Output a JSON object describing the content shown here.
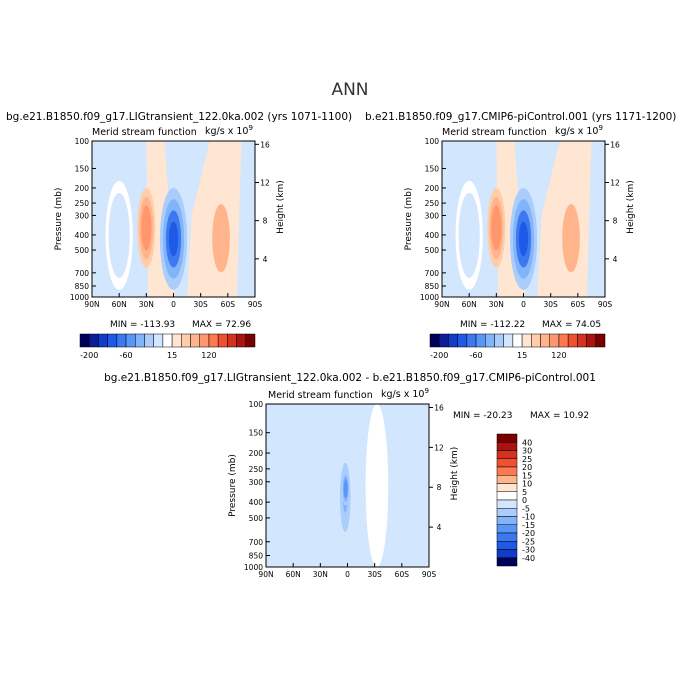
{
  "main_title": "ANN",
  "panels": [
    {
      "case_title": "bg.e21.B1850.f09_g17.LIGtransient_122.0ka.002 (yrs 1071-1100)",
      "left_title": "Merid stream function",
      "units": "kg/s x 10",
      "units_exp": "9",
      "min_text": "MIN = -113.93",
      "max_text": "MAX = 72.96"
    },
    {
      "case_title": "b.e21.B1850.f09_g17.CMIP6-piControl.001 (yrs 1171-1200)",
      "left_title": "Merid stream function",
      "units": "kg/s x 10",
      "units_exp": "9",
      "min_text": "MIN = -112.22",
      "max_text": "MAX = 74.05"
    },
    {
      "case_title": "bg.e21.B1850.f09_g17.LIGtransient_122.0ka.002 - b.e21.B1850.f09_g17.CMIP6-piControl.001",
      "left_title": "Merid stream function",
      "units": "kg/s x 10",
      "units_exp": "9",
      "min_text": "MIN = -20.23",
      "max_text": "MAX = 10.92"
    }
  ],
  "chart_data": [
    {
      "type": "heatmap",
      "title": "Merid stream function",
      "xlabel": "",
      "ylabel": "Pressure (mb)",
      "y2label": "Height (km)",
      "x_ticks": [
        "90N",
        "60N",
        "30N",
        "0",
        "30S",
        "60S",
        "90S"
      ],
      "x_range": [
        90,
        -90
      ],
      "y_ticks": [
        100,
        150,
        200,
        250,
        300,
        400,
        500,
        700,
        850,
        1000
      ],
      "y_range": [
        100,
        1000
      ],
      "y_scale": "log",
      "y2_ticks": [
        4,
        8,
        12,
        16
      ],
      "min": -113.93,
      "max": 72.96,
      "colorbar": {
        "orientation": "horizontal",
        "labels": [
          "-200",
          "-60",
          "15",
          "120"
        ],
        "colors": [
          "#00005a",
          "#0a1e96",
          "#0f3cc8",
          "#1e5ae6",
          "#3c78f0",
          "#5a96f5",
          "#82b4fa",
          "#aacdfc",
          "#d2e6fe",
          "#ffffff",
          "#ffe6d2",
          "#ffcdaa",
          "#ffb48c",
          "#ff966e",
          "#ff7850",
          "#f05032",
          "#d2321e",
          "#aa1410",
          "#780000"
        ]
      },
      "cells": [
        {
          "lat_from": 40,
          "lat_to": 20,
          "p_top": 200,
          "p_bottom": 650,
          "value": 60
        },
        {
          "lat_from": 15,
          "lat_to": -15,
          "p_top": 200,
          "p_bottom": 900,
          "value": -110
        },
        {
          "lat_from": -40,
          "lat_to": -65,
          "p_top": 220,
          "p_bottom": 800,
          "value": 40
        },
        {
          "lat_from": 75,
          "lat_to": 45,
          "p_top": 180,
          "p_bottom": 900,
          "value": -15
        }
      ]
    },
    {
      "type": "heatmap",
      "title": "Merid stream function",
      "xlabel": "",
      "ylabel": "Pressure (mb)",
      "y2label": "Height (km)",
      "x_ticks": [
        "90N",
        "60N",
        "30N",
        "0",
        "30S",
        "60S",
        "90S"
      ],
      "x_range": [
        90,
        -90
      ],
      "y_ticks": [
        100,
        150,
        200,
        250,
        300,
        400,
        500,
        700,
        850,
        1000
      ],
      "y_range": [
        100,
        1000
      ],
      "y_scale": "log",
      "y2_ticks": [
        4,
        8,
        12,
        16
      ],
      "min": -112.22,
      "max": 74.05,
      "colorbar": {
        "orientation": "horizontal",
        "labels": [
          "-200",
          "-60",
          "15",
          "120"
        ],
        "colors": [
          "#00005a",
          "#0a1e96",
          "#0f3cc8",
          "#1e5ae6",
          "#3c78f0",
          "#5a96f5",
          "#82b4fa",
          "#aacdfc",
          "#d2e6fe",
          "#ffffff",
          "#ffe6d2",
          "#ffcdaa",
          "#ffb48c",
          "#ff966e",
          "#ff7850",
          "#f05032",
          "#d2321e",
          "#aa1410",
          "#780000"
        ]
      },
      "cells": [
        {
          "lat_from": 40,
          "lat_to": 20,
          "p_top": 200,
          "p_bottom": 650,
          "value": 60
        },
        {
          "lat_from": 15,
          "lat_to": -15,
          "p_top": 200,
          "p_bottom": 900,
          "value": -110
        },
        {
          "lat_from": -40,
          "lat_to": -65,
          "p_top": 220,
          "p_bottom": 800,
          "value": 40
        },
        {
          "lat_from": 75,
          "lat_to": 45,
          "p_top": 180,
          "p_bottom": 900,
          "value": -15
        }
      ]
    },
    {
      "type": "heatmap",
      "title": "Merid stream function",
      "xlabel": "",
      "ylabel": "Pressure (mb)",
      "y2label": "Height (km)",
      "x_ticks": [
        "90N",
        "60N",
        "30N",
        "0",
        "30S",
        "60S",
        "90S"
      ],
      "x_range": [
        90,
        -90
      ],
      "y_ticks": [
        100,
        150,
        200,
        250,
        300,
        400,
        500,
        700,
        850,
        1000
      ],
      "y_range": [
        100,
        1000
      ],
      "y_scale": "log",
      "y2_ticks": [
        4,
        8,
        12,
        16
      ],
      "min": -20.23,
      "max": 10.92,
      "colorbar": {
        "orientation": "vertical",
        "labels": [
          "40",
          "30",
          "25",
          "20",
          "15",
          "10",
          "5",
          "0",
          "-5",
          "-10",
          "-15",
          "-20",
          "-25",
          "-30",
          "-40"
        ],
        "colors": [
          "#780000",
          "#aa1410",
          "#d2321e",
          "#f05032",
          "#ff7850",
          "#ffb48c",
          "#ffe6d2",
          "#ffffff",
          "#d2e6fe",
          "#aacdfc",
          "#82b4fa",
          "#5a96f5",
          "#3c78f0",
          "#1e5ae6",
          "#0f3cc8",
          "#00005a"
        ]
      },
      "cells": [
        {
          "lat_from": 10,
          "lat_to": -5,
          "p_top": 200,
          "p_bottom": 700,
          "value": -12
        },
        {
          "lat_from": 6,
          "lat_to": -2,
          "p_top": 260,
          "p_bottom": 420,
          "value": -20
        },
        {
          "lat_from": -20,
          "lat_to": -45,
          "p_top": 100,
          "p_bottom": 1000,
          "value": 3
        }
      ]
    }
  ]
}
